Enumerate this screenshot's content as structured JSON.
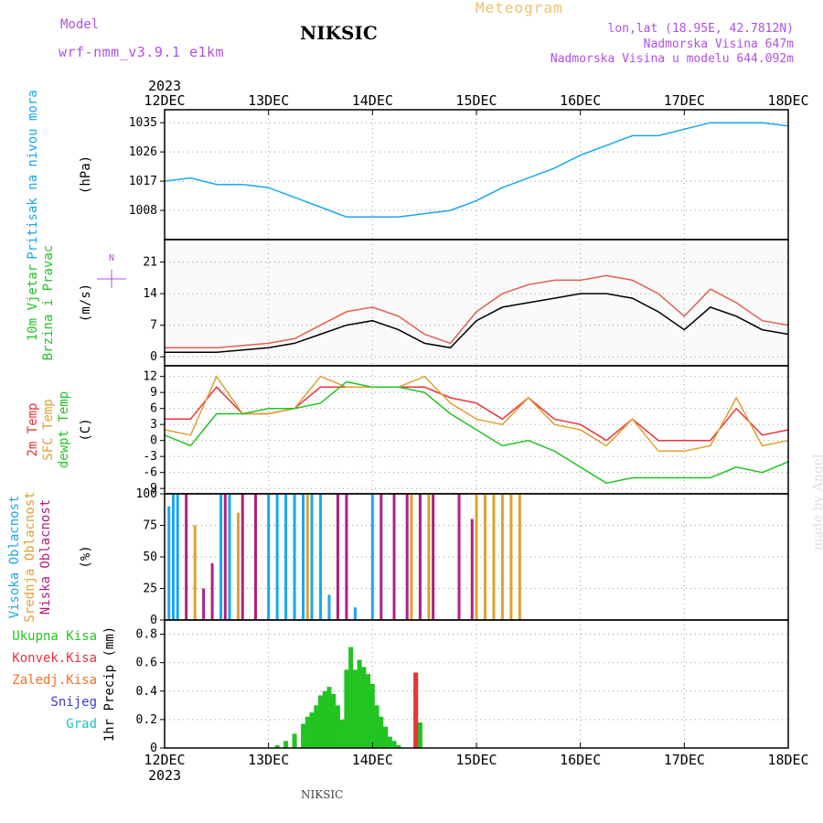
{
  "header": {
    "model_label": "Model",
    "model_value": "wrf-nmm_v3.9.1 e1km",
    "title": "NIKSIC",
    "meteogram": "Meteogram",
    "lonlat": "lon,lat (18.95E, 42.7812N)",
    "elevation": "Nadmorska Visina 647m",
    "model_elevation": "Nadmorska Visina u modelu 644.092m",
    "watermark": "made by Angel",
    "footer": "NIKSIC"
  },
  "colors": {
    "pressure": "#1aa7ec",
    "temp2m": "#e8323c",
    "sfc_temp": "#e0a030",
    "dewpoint": "#22c422",
    "high_cloud": "#1aa7ec",
    "mid_cloud": "#e0a030",
    "low_cloud": "#b0207f",
    "total_precip": "#22c422",
    "conv_precip": "#e8323c",
    "frozen_precip": "#f07020",
    "snow": "#3a3ad0",
    "hail": "#20c0c0",
    "wind_speed": "#000000",
    "wind_gust": "#e06050"
  },
  "chart_data": {
    "type": "line",
    "title": "NIKSIC",
    "time_axis": {
      "year": "2023",
      "ticks": [
        "12DEC",
        "13DEC",
        "14DEC",
        "15DEC",
        "16DEC",
        "17DEC",
        "18DEC"
      ],
      "start": "2023-12-12T00:00",
      "end": "2023-12-18T00:00"
    },
    "panels": [
      {
        "id": "pressure",
        "labels": [
          {
            "text": "Pritisak na nivou mora",
            "color": "#1aa7ec"
          }
        ],
        "unit": "(hPa)",
        "ylim": [
          999,
          1039
        ],
        "yticks": [
          1008,
          1017,
          1026,
          1035
        ],
        "series": [
          {
            "name": "Pritisak na nivou mora",
            "color": "#1aa7ec",
            "x": [
              "2023-12-12T00:00",
              "2023-12-12T06:00",
              "2023-12-12T12:00",
              "2023-12-12T18:00",
              "2023-12-13T00:00",
              "2023-12-13T06:00",
              "2023-12-13T12:00",
              "2023-12-13T18:00",
              "2023-12-14T00:00",
              "2023-12-14T06:00",
              "2023-12-14T12:00",
              "2023-12-14T18:00",
              "2023-12-15T00:00",
              "2023-12-15T06:00",
              "2023-12-15T12:00",
              "2023-12-15T18:00",
              "2023-12-16T00:00",
              "2023-12-16T06:00",
              "2023-12-16T12:00",
              "2023-12-16T18:00",
              "2023-12-17T00:00",
              "2023-12-17T06:00",
              "2023-12-17T12:00",
              "2023-12-17T18:00",
              "2023-12-18T00:00"
            ],
            "y": [
              1017,
              1018,
              1016,
              1016,
              1015,
              1012,
              1009,
              1006,
              1006,
              1006,
              1007,
              1008,
              1011,
              1015,
              1018,
              1021,
              1025,
              1028,
              1031,
              1031,
              1033,
              1035,
              1035,
              1035,
              1034
            ]
          }
        ]
      },
      {
        "id": "wind",
        "labels": [
          {
            "text": "10m Vjetar",
            "color": "#22c422"
          },
          {
            "text": "Brzina i Pravac",
            "color": "#22c422"
          }
        ],
        "unit": "(m/s)",
        "ylim": [
          -2,
          26
        ],
        "yticks": [
          0,
          7,
          14,
          21
        ],
        "compass": "N",
        "series": [
          {
            "name": "speed",
            "color": "#000000",
            "x": [
              "2023-12-12T00:00",
              "2023-12-12T12:00",
              "2023-12-13T00:00",
              "2023-12-13T06:00",
              "2023-12-13T12:00",
              "2023-12-13T18:00",
              "2023-12-14T00:00",
              "2023-12-14T06:00",
              "2023-12-14T12:00",
              "2023-12-14T18:00",
              "2023-12-15T00:00",
              "2023-12-15T06:00",
              "2023-12-15T12:00",
              "2023-12-15T18:00",
              "2023-12-16T00:00",
              "2023-12-16T06:00",
              "2023-12-16T12:00",
              "2023-12-16T18:00",
              "2023-12-17T00:00",
              "2023-12-17T06:00",
              "2023-12-17T12:00",
              "2023-12-17T18:00",
              "2023-12-18T00:00"
            ],
            "y": [
              1,
              1,
              2,
              3,
              5,
              7,
              8,
              6,
              3,
              2,
              8,
              11,
              12,
              13,
              14,
              14,
              13,
              10,
              6,
              11,
              9,
              6,
              5
            ]
          },
          {
            "name": "gust",
            "color": "#e06050",
            "x": [
              "2023-12-12T00:00",
              "2023-12-12T12:00",
              "2023-12-13T00:00",
              "2023-12-13T06:00",
              "2023-12-13T12:00",
              "2023-12-13T18:00",
              "2023-12-14T00:00",
              "2023-12-14T06:00",
              "2023-12-14T12:00",
              "2023-12-14T18:00",
              "2023-12-15T00:00",
              "2023-12-15T06:00",
              "2023-12-15T12:00",
              "2023-12-15T18:00",
              "2023-12-16T00:00",
              "2023-12-16T06:00",
              "2023-12-16T12:00",
              "2023-12-16T18:00",
              "2023-12-17T00:00",
              "2023-12-17T06:00",
              "2023-12-17T12:00",
              "2023-12-17T18:00",
              "2023-12-18T00:00"
            ],
            "y": [
              2,
              2,
              3,
              4,
              7,
              10,
              11,
              9,
              5,
              3,
              10,
              14,
              16,
              17,
              17,
              18,
              17,
              14,
              9,
              15,
              12,
              8,
              7
            ]
          }
        ]
      },
      {
        "id": "temperature",
        "labels": [
          {
            "text": "2m Temp",
            "color": "#e8323c"
          },
          {
            "text": "SFC Temp",
            "color": "#e0a030"
          },
          {
            "text": "dewpt Temp",
            "color": "#22c422"
          }
        ],
        "unit": "(C)",
        "ylim": [
          -10,
          14
        ],
        "yticks": [
          -9,
          -6,
          -3,
          0,
          3,
          6,
          9,
          12
        ],
        "series": [
          {
            "name": "2m Temp",
            "color": "#e8323c",
            "x": [
              "2023-12-12T00:00",
              "2023-12-12T06:00",
              "2023-12-12T12:00",
              "2023-12-12T18:00",
              "2023-12-13T00:00",
              "2023-12-13T06:00",
              "2023-12-13T12:00",
              "2023-12-13T18:00",
              "2023-12-14T00:00",
              "2023-12-14T06:00",
              "2023-12-14T12:00",
              "2023-12-14T18:00",
              "2023-12-15T00:00",
              "2023-12-15T06:00",
              "2023-12-15T12:00",
              "2023-12-15T18:00",
              "2023-12-16T00:00",
              "2023-12-16T06:00",
              "2023-12-16T12:00",
              "2023-12-16T18:00",
              "2023-12-17T00:00",
              "2023-12-17T06:00",
              "2023-12-17T12:00",
              "2023-12-17T18:00",
              "2023-12-18T00:00"
            ],
            "y": [
              4,
              4,
              10,
              5,
              5,
              6,
              10,
              10,
              10,
              10,
              10,
              8,
              7,
              4,
              8,
              4,
              3,
              0,
              4,
              0,
              0,
              0,
              6,
              1,
              2
            ]
          },
          {
            "name": "SFC Temp",
            "color": "#e0a030",
            "x": [
              "2023-12-12T00:00",
              "2023-12-12T06:00",
              "2023-12-12T12:00",
              "2023-12-12T18:00",
              "2023-12-13T00:00",
              "2023-12-13T06:00",
              "2023-12-13T12:00",
              "2023-12-13T18:00",
              "2023-12-14T00:00",
              "2023-12-14T06:00",
              "2023-12-14T12:00",
              "2023-12-14T18:00",
              "2023-12-15T00:00",
              "2023-12-15T06:00",
              "2023-12-15T12:00",
              "2023-12-15T18:00",
              "2023-12-16T00:00",
              "2023-12-16T06:00",
              "2023-12-16T12:00",
              "2023-12-16T18:00",
              "2023-12-17T00:00",
              "2023-12-17T06:00",
              "2023-12-17T12:00",
              "2023-12-17T18:00",
              "2023-12-18T00:00"
            ],
            "y": [
              2,
              1,
              12,
              5,
              5,
              6,
              12,
              10,
              10,
              10,
              12,
              7,
              4,
              3,
              8,
              3,
              2,
              -1,
              4,
              -2,
              -2,
              -1,
              8,
              -1,
              0
            ]
          },
          {
            "name": "dewpt Temp",
            "color": "#22c422",
            "x": [
              "2023-12-12T00:00",
              "2023-12-12T06:00",
              "2023-12-12T12:00",
              "2023-12-12T18:00",
              "2023-12-13T00:00",
              "2023-12-13T06:00",
              "2023-12-13T12:00",
              "2023-12-13T18:00",
              "2023-12-14T00:00",
              "2023-12-14T06:00",
              "2023-12-14T12:00",
              "2023-12-14T18:00",
              "2023-12-15T00:00",
              "2023-12-15T06:00",
              "2023-12-15T12:00",
              "2023-12-15T18:00",
              "2023-12-16T00:00",
              "2023-12-16T06:00",
              "2023-12-16T12:00",
              "2023-12-16T18:00",
              "2023-12-17T00:00",
              "2023-12-17T06:00",
              "2023-12-17T12:00",
              "2023-12-17T18:00",
              "2023-12-18T00:00"
            ],
            "y": [
              1,
              -1,
              5,
              5,
              6,
              6,
              7,
              11,
              10,
              10,
              9,
              5,
              2,
              -1,
              0,
              -2,
              -5,
              -8,
              -7,
              -7,
              -7,
              -7,
              -5,
              -6,
              -4
            ]
          }
        ]
      },
      {
        "id": "cloud",
        "labels": [
          {
            "text": "Visoka Oblacnost",
            "color": "#1aa7ec"
          },
          {
            "text": "Srednja Oblacnost",
            "color": "#e0a030"
          },
          {
            "text": "Niska Oblacnost",
            "color": "#b0207f"
          }
        ],
        "unit": "(%)",
        "ylim": [
          0,
          100
        ],
        "yticks": [
          0,
          25,
          50,
          75,
          100
        ],
        "series": [
          {
            "name": "Visoka Oblacnost",
            "color": "#1aa7ec",
            "x": [
              "2023-12-12T01:00",
              "2023-12-12T02:00",
              "2023-12-12T03:00",
              "2023-12-12T13:00",
              "2023-12-12T15:00",
              "2023-12-13T00:00",
              "2023-12-13T02:00",
              "2023-12-13T04:00",
              "2023-12-13T06:00",
              "2023-12-13T08:00",
              "2023-12-13T10:00",
              "2023-12-13T12:00",
              "2023-12-13T14:00",
              "2023-12-13T20:00",
              "2023-12-14T00:00"
            ],
            "values": [
              90,
              100,
              100,
              100,
              100,
              100,
              100,
              100,
              100,
              100,
              100,
              100,
              20,
              10,
              100
            ]
          },
          {
            "name": "Srednja Oblacnost",
            "color": "#e0a030",
            "x": [
              "2023-12-12T07:00",
              "2023-12-12T17:00",
              "2023-12-13T09:00",
              "2023-12-14T09:00",
              "2023-12-14T13:00",
              "2023-12-15T00:00",
              "2023-12-15T02:00",
              "2023-12-15T04:00",
              "2023-12-15T06:00",
              "2023-12-15T08:00",
              "2023-12-15T10:00"
            ],
            "values": [
              75,
              85,
              100,
              100,
              100,
              100,
              100,
              100,
              100,
              100,
              100
            ]
          },
          {
            "name": "Niska Oblacnost",
            "color": "#b0207f",
            "x": [
              "2023-12-12T05:00",
              "2023-12-12T09:00",
              "2023-12-12T11:00",
              "2023-12-12T14:00",
              "2023-12-12T18:00",
              "2023-12-12T21:00",
              "2023-12-13T16:00",
              "2023-12-13T18:00",
              "2023-12-14T02:00",
              "2023-12-14T05:00",
              "2023-12-14T08:00",
              "2023-12-14T11:00",
              "2023-12-14T14:00",
              "2023-12-14T20:00",
              "2023-12-14T23:00"
            ],
            "values": [
              100,
              25,
              45,
              100,
              100,
              100,
              100,
              100,
              100,
              100,
              100,
              100,
              100,
              100,
              80
            ]
          }
        ]
      },
      {
        "id": "precip",
        "labels": [
          {
            "text": "Ukupna Kisa",
            "color": "#22c422"
          },
          {
            "text": "Konvek.Kisa",
            "color": "#e8323c"
          },
          {
            "text": "Zaledj.Kisa",
            "color": "#f07020"
          },
          {
            "text": "Snijeg",
            "color": "#3a3ad0"
          },
          {
            "text": "Grad",
            "color": "#20c0c0"
          }
        ],
        "unit": "1hr Precip (mm)",
        "ylim": [
          0,
          0.9
        ],
        "yticks": [
          0,
          0.2,
          0.4,
          0.6,
          0.8
        ],
        "series": [
          {
            "name": "Ukupna Kisa",
            "color": "#22c422",
            "x": [
              "2023-12-13T02:00",
              "2023-12-13T04:00",
              "2023-12-13T06:00",
              "2023-12-13T08:00",
              "2023-12-13T09:00",
              "2023-12-13T10:00",
              "2023-12-13T11:00",
              "2023-12-13T12:00",
              "2023-12-13T13:00",
              "2023-12-13T14:00",
              "2023-12-13T15:00",
              "2023-12-13T16:00",
              "2023-12-13T17:00",
              "2023-12-13T18:00",
              "2023-12-13T19:00",
              "2023-12-13T20:00",
              "2023-12-13T21:00",
              "2023-12-13T22:00",
              "2023-12-13T23:00",
              "2023-12-14T00:00",
              "2023-12-14T01:00",
              "2023-12-14T02:00",
              "2023-12-14T03:00",
              "2023-12-14T04:00",
              "2023-12-14T05:00",
              "2023-12-14T06:00",
              "2023-12-14T10:00",
              "2023-12-14T11:00"
            ],
            "values": [
              0.02,
              0.05,
              0.1,
              0.17,
              0.22,
              0.25,
              0.3,
              0.37,
              0.4,
              0.43,
              0.38,
              0.3,
              0.2,
              0.55,
              0.71,
              0.55,
              0.62,
              0.57,
              0.52,
              0.45,
              0.3,
              0.22,
              0.15,
              0.08,
              0.05,
              0.02,
              0.53,
              0.18
            ]
          },
          {
            "name": "Konvek.Kisa",
            "color": "#e8323c",
            "x": [
              "2023-12-14T10:00"
            ],
            "values": [
              0.53
            ]
          }
        ]
      }
    ]
  }
}
